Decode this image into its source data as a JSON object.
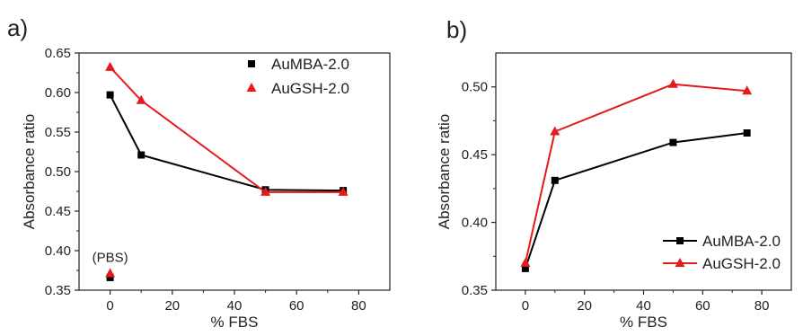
{
  "chart_data": [
    {
      "panel": "a)",
      "type": "line",
      "xlabel": "% FBS",
      "ylabel": "Absorbance ratio",
      "xlim": [
        -10,
        90
      ],
      "ylim": [
        0.35,
        0.65
      ],
      "xticks": [
        "0",
        "20",
        "40",
        "60",
        "80"
      ],
      "yticks": [
        "0.35",
        "0.40",
        "0.45",
        "0.50",
        "0.55",
        "0.60",
        "0.65"
      ],
      "legend_position": "top-right",
      "series": [
        {
          "name": "AuMBA-2.0",
          "color": "#000000",
          "marker": "square",
          "x": [
            0,
            10,
            50,
            75
          ],
          "y": [
            0.597,
            0.521,
            0.477,
            0.476
          ]
        },
        {
          "name": "AuGSH-2.0",
          "color": "#e41a1c",
          "marker": "triangle",
          "x": [
            0,
            10,
            50,
            75
          ],
          "y": [
            0.632,
            0.59,
            0.474,
            0.474
          ]
        }
      ],
      "extra_points": [
        {
          "x": 0,
          "y": 0.366,
          "color": "#000000",
          "marker": "square"
        },
        {
          "x": 0,
          "y": 0.371,
          "color": "#e41a1c",
          "marker": "triangle"
        }
      ],
      "annotation": "(PBS)"
    },
    {
      "panel": "b)",
      "type": "line",
      "xlabel": "% FBS",
      "ylabel": "Absorbance ratio",
      "xlim": [
        -10,
        90
      ],
      "ylim": [
        0.35,
        0.525
      ],
      "xticks": [
        "0",
        "20",
        "40",
        "60",
        "80"
      ],
      "yticks": [
        "0.35",
        "0.40",
        "0.45",
        "0.50"
      ],
      "legend_position": "bottom-right",
      "series": [
        {
          "name": "AuMBA-2.0",
          "color": "#000000",
          "marker": "square",
          "x": [
            0,
            10,
            50,
            75
          ],
          "y": [
            0.366,
            0.431,
            0.459,
            0.466
          ]
        },
        {
          "name": "AuGSH-2.0",
          "color": "#e41a1c",
          "marker": "triangle",
          "x": [
            0,
            10,
            50,
            75
          ],
          "y": [
            0.37,
            0.467,
            0.502,
            0.497
          ]
        }
      ]
    }
  ]
}
